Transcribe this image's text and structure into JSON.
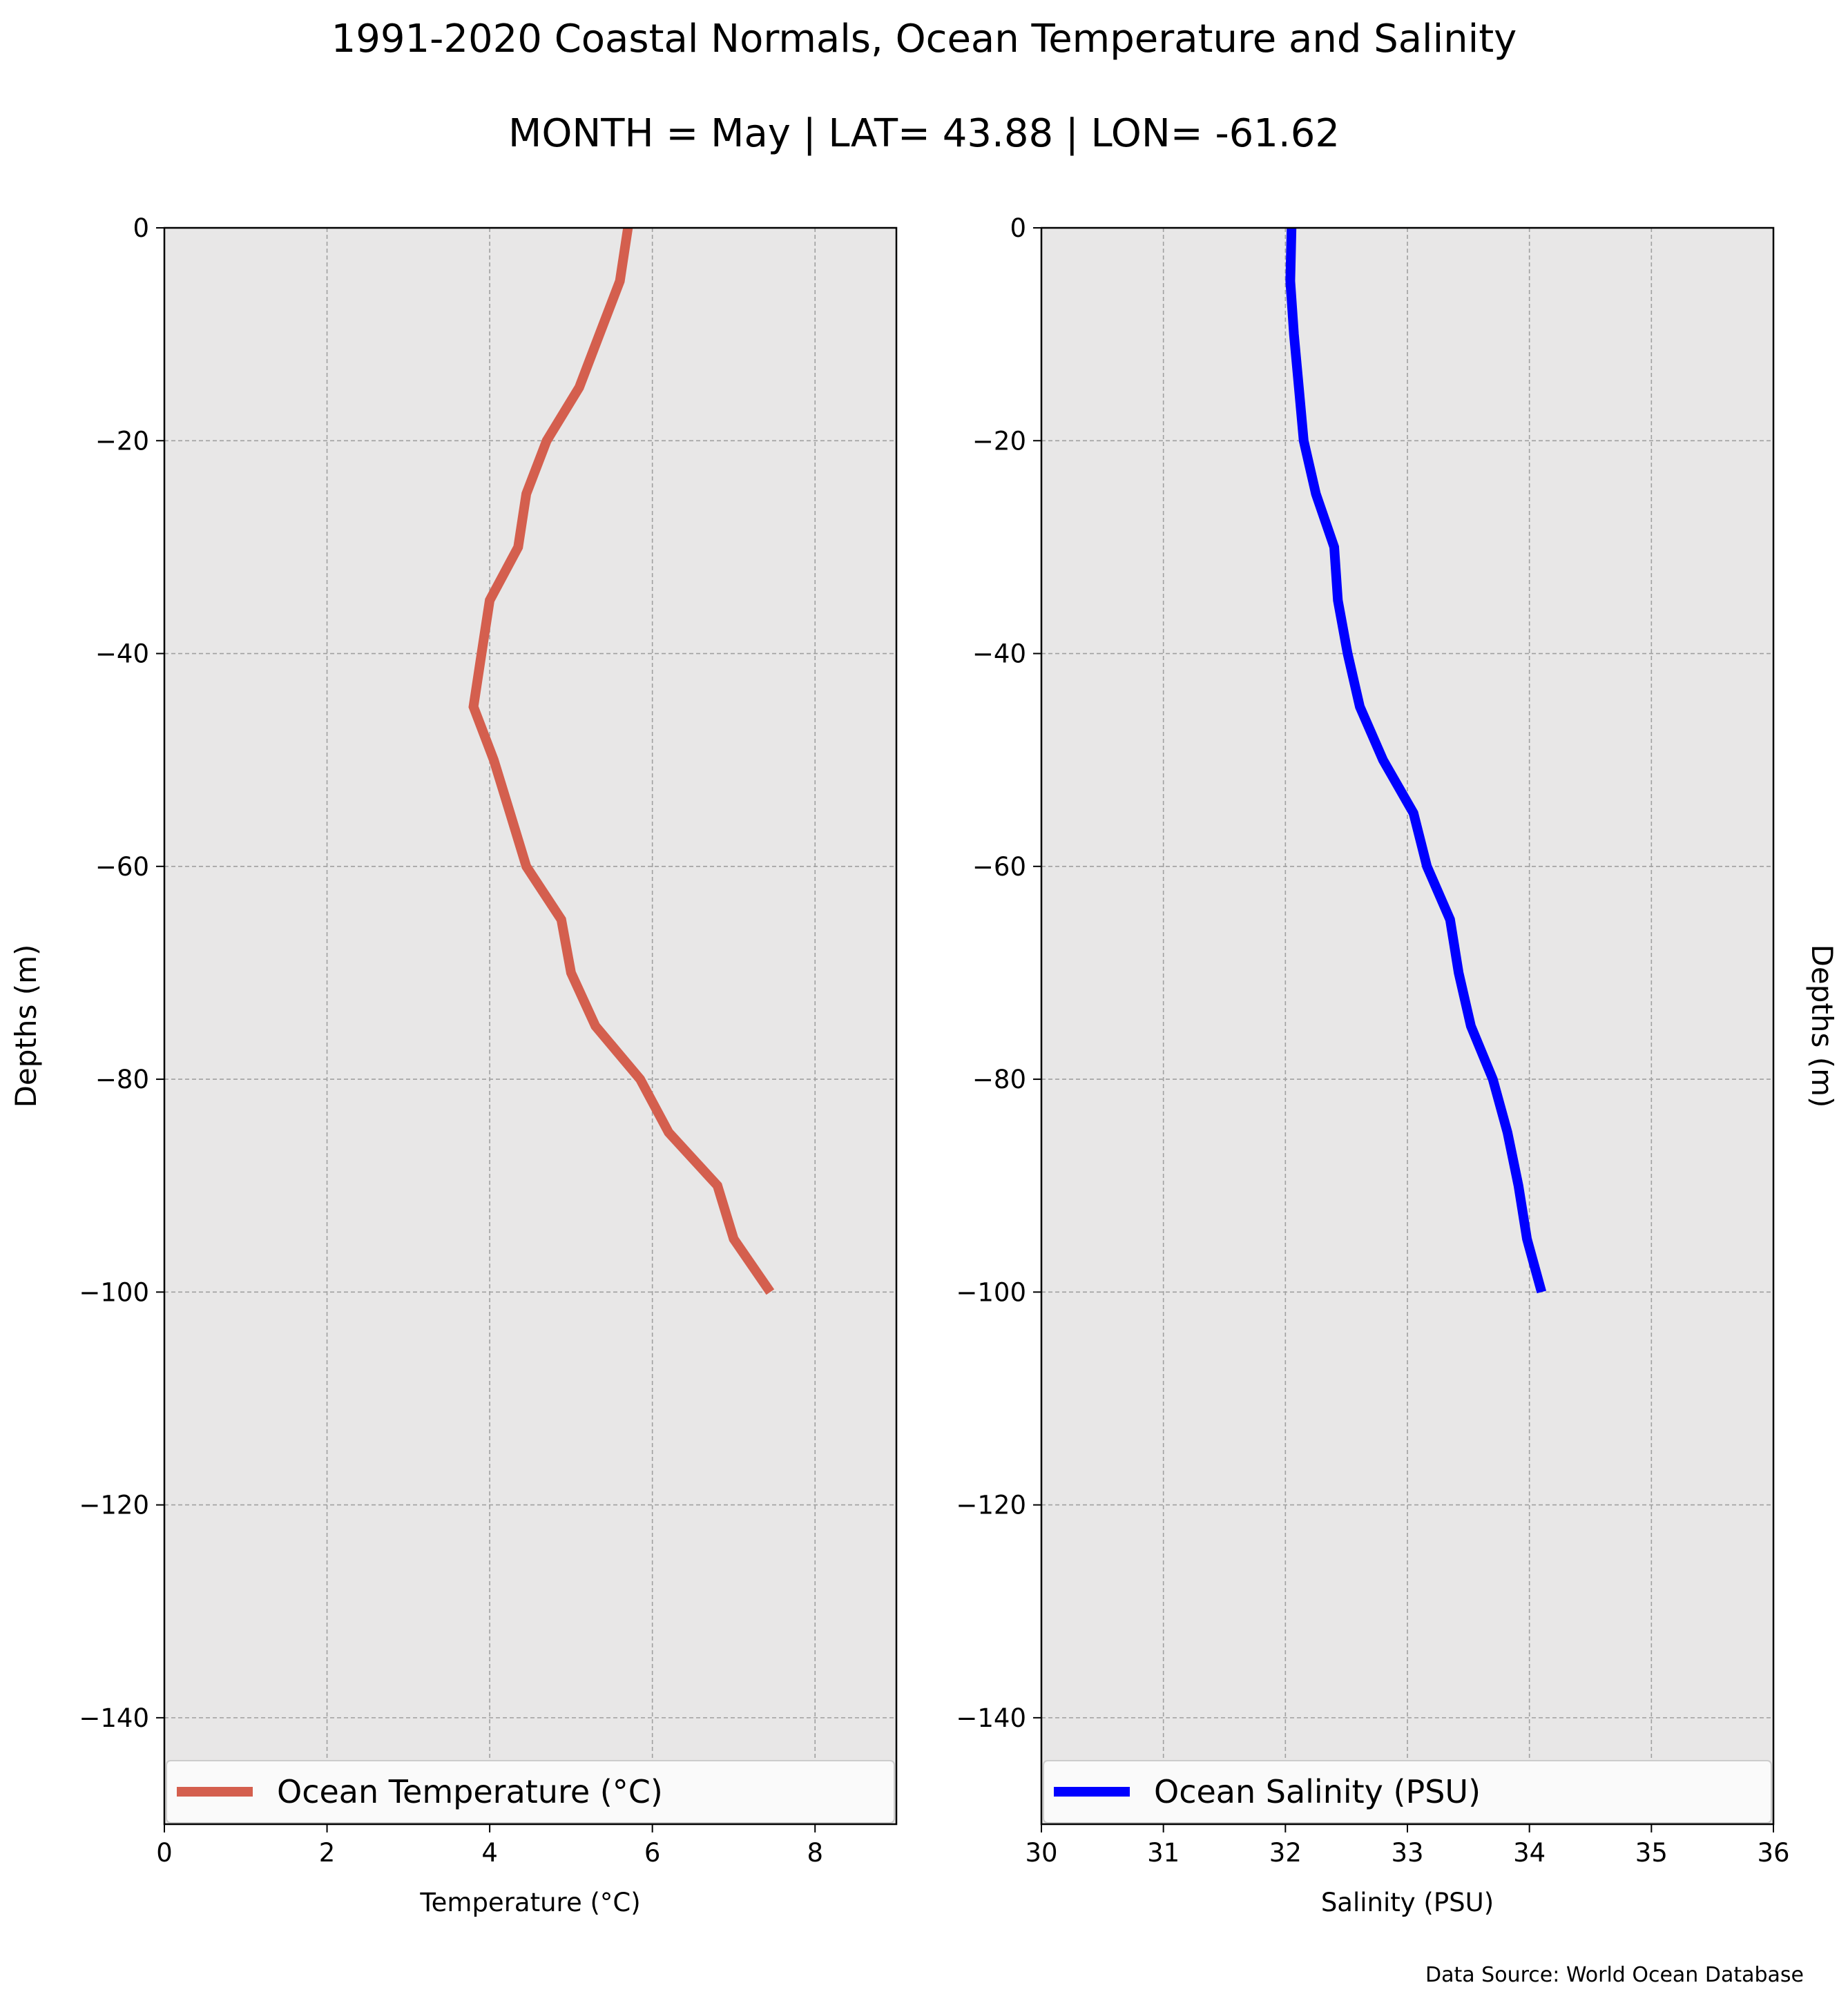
{
  "figure": {
    "title_line1": "1991-2020 Coastal Normals, Ocean Temperature and Salinity",
    "title_line2": "MONTH = May | LAT= 43.88 | LON= -61.62",
    "source_note": "Data Source: World Ocean Database"
  },
  "chart_data": [
    {
      "type": "line",
      "orientation": "vertical-profile",
      "xlabel": "Temperature (°C)",
      "ylabel": "Depths (m)",
      "xlim": [
        0,
        9
      ],
      "ylim": [
        -150,
        0
      ],
      "xticks": [
        0,
        2,
        4,
        6,
        8
      ],
      "xtick_labels": [
        "0",
        "2",
        "4",
        "6",
        "8"
      ],
      "yticks": [
        0,
        -20,
        -40,
        -60,
        -80,
        -100,
        -120,
        -140
      ],
      "ytick_labels": [
        "0",
        "−20",
        "−40",
        "−60",
        "−80",
        "−100",
        "−120",
        "−140"
      ],
      "grid": true,
      "legend_position": "bottom",
      "background_color": "#e8e7e7",
      "series": [
        {
          "name": "Ocean Temperature (°C)",
          "color": "#d45f4e",
          "x": [
            5.7,
            5.6,
            5.35,
            5.1,
            4.7,
            4.45,
            4.35,
            4.0,
            3.9,
            3.8,
            4.05,
            4.25,
            4.45,
            4.88,
            5.0,
            5.3,
            5.85,
            6.2,
            6.8,
            7.0,
            7.45
          ],
          "y": [
            0,
            -5,
            -10,
            -15,
            -20,
            -25,
            -30,
            -35,
            -40,
            -45,
            -50,
            -55,
            -60,
            -65,
            -70,
            -75,
            -80,
            -85,
            -90,
            -95,
            -100
          ]
        }
      ]
    },
    {
      "type": "line",
      "orientation": "vertical-profile",
      "xlabel": "Salinity (PSU)",
      "ylabel": "Depths (m)",
      "ylabel_side": "right",
      "xlim": [
        30,
        36
      ],
      "ylim": [
        -150,
        0
      ],
      "xticks": [
        30,
        31,
        32,
        33,
        34,
        35,
        36
      ],
      "xtick_labels": [
        "30",
        "31",
        "32",
        "33",
        "34",
        "35",
        "36"
      ],
      "yticks": [
        0,
        -20,
        -40,
        -60,
        -80,
        -100,
        -120,
        -140
      ],
      "ytick_labels": [
        "0",
        "−20",
        "−40",
        "−60",
        "−80",
        "−100",
        "−120",
        "−140"
      ],
      "grid": true,
      "legend_position": "bottom",
      "background_color": "#e8e7e7",
      "series": [
        {
          "name": "Ocean Salinity (PSU)",
          "color": "#0000ff",
          "x": [
            32.05,
            32.04,
            32.07,
            32.11,
            32.15,
            32.25,
            32.4,
            32.43,
            32.51,
            32.61,
            32.8,
            33.05,
            33.16,
            33.35,
            33.42,
            33.52,
            33.7,
            33.82,
            33.91,
            33.98,
            34.1
          ],
          "y": [
            0,
            -5,
            -10,
            -15,
            -20,
            -25,
            -30,
            -35,
            -40,
            -45,
            -50,
            -55,
            -60,
            -65,
            -70,
            -75,
            -80,
            -85,
            -90,
            -95,
            -100
          ]
        }
      ]
    }
  ]
}
